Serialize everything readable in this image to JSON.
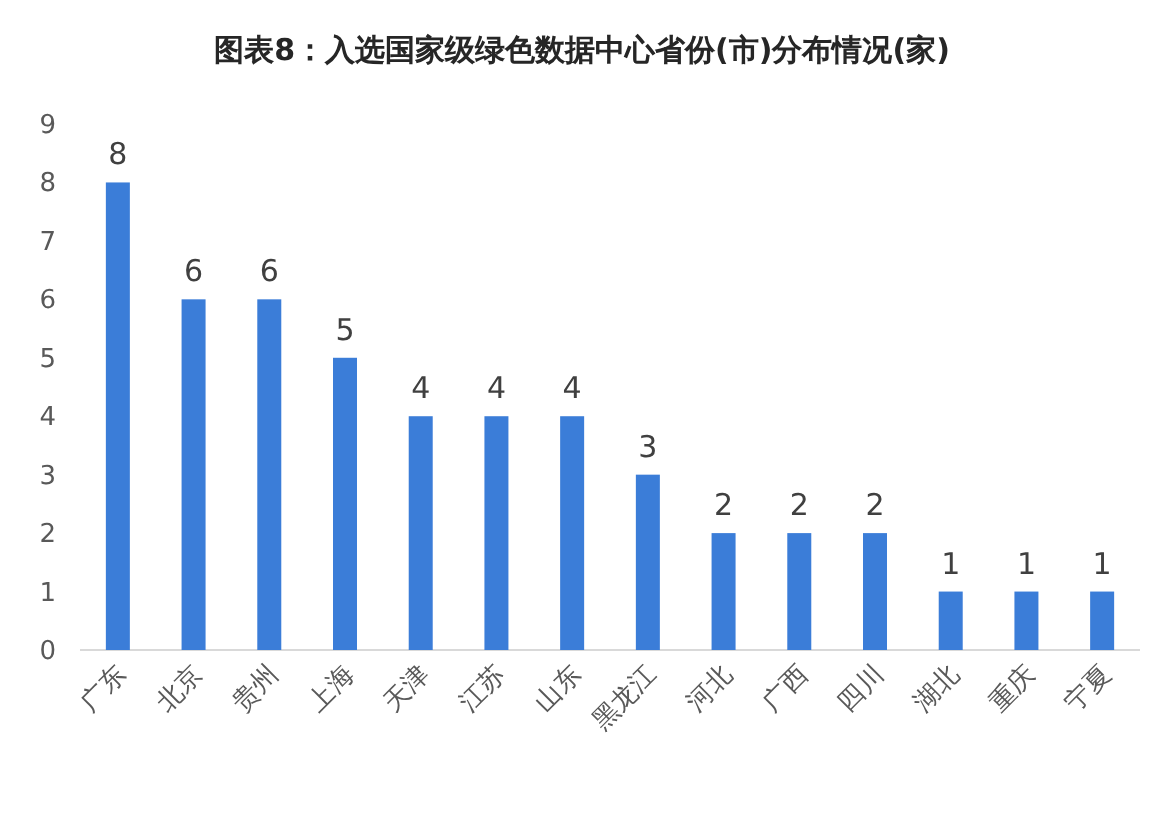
{
  "chart_data": {
    "type": "bar",
    "title": "图表8：入选国家级绿色数据中心省份(市)分布情况(家)",
    "categories": [
      "广东",
      "北京",
      "贵州",
      "上海",
      "天津",
      "江苏",
      "山东",
      "黑龙江",
      "河北",
      "广西",
      "四川",
      "湖北",
      "重庆",
      "宁夏"
    ],
    "values": [
      8,
      6,
      6,
      5,
      4,
      4,
      4,
      3,
      2,
      2,
      2,
      1,
      1,
      1
    ],
    "color": "#3b7dd8",
    "ylim": [
      0,
      9
    ],
    "yticks": [
      0,
      1,
      2,
      3,
      4,
      5,
      6,
      7,
      8,
      9
    ],
    "data_labels": true
  }
}
